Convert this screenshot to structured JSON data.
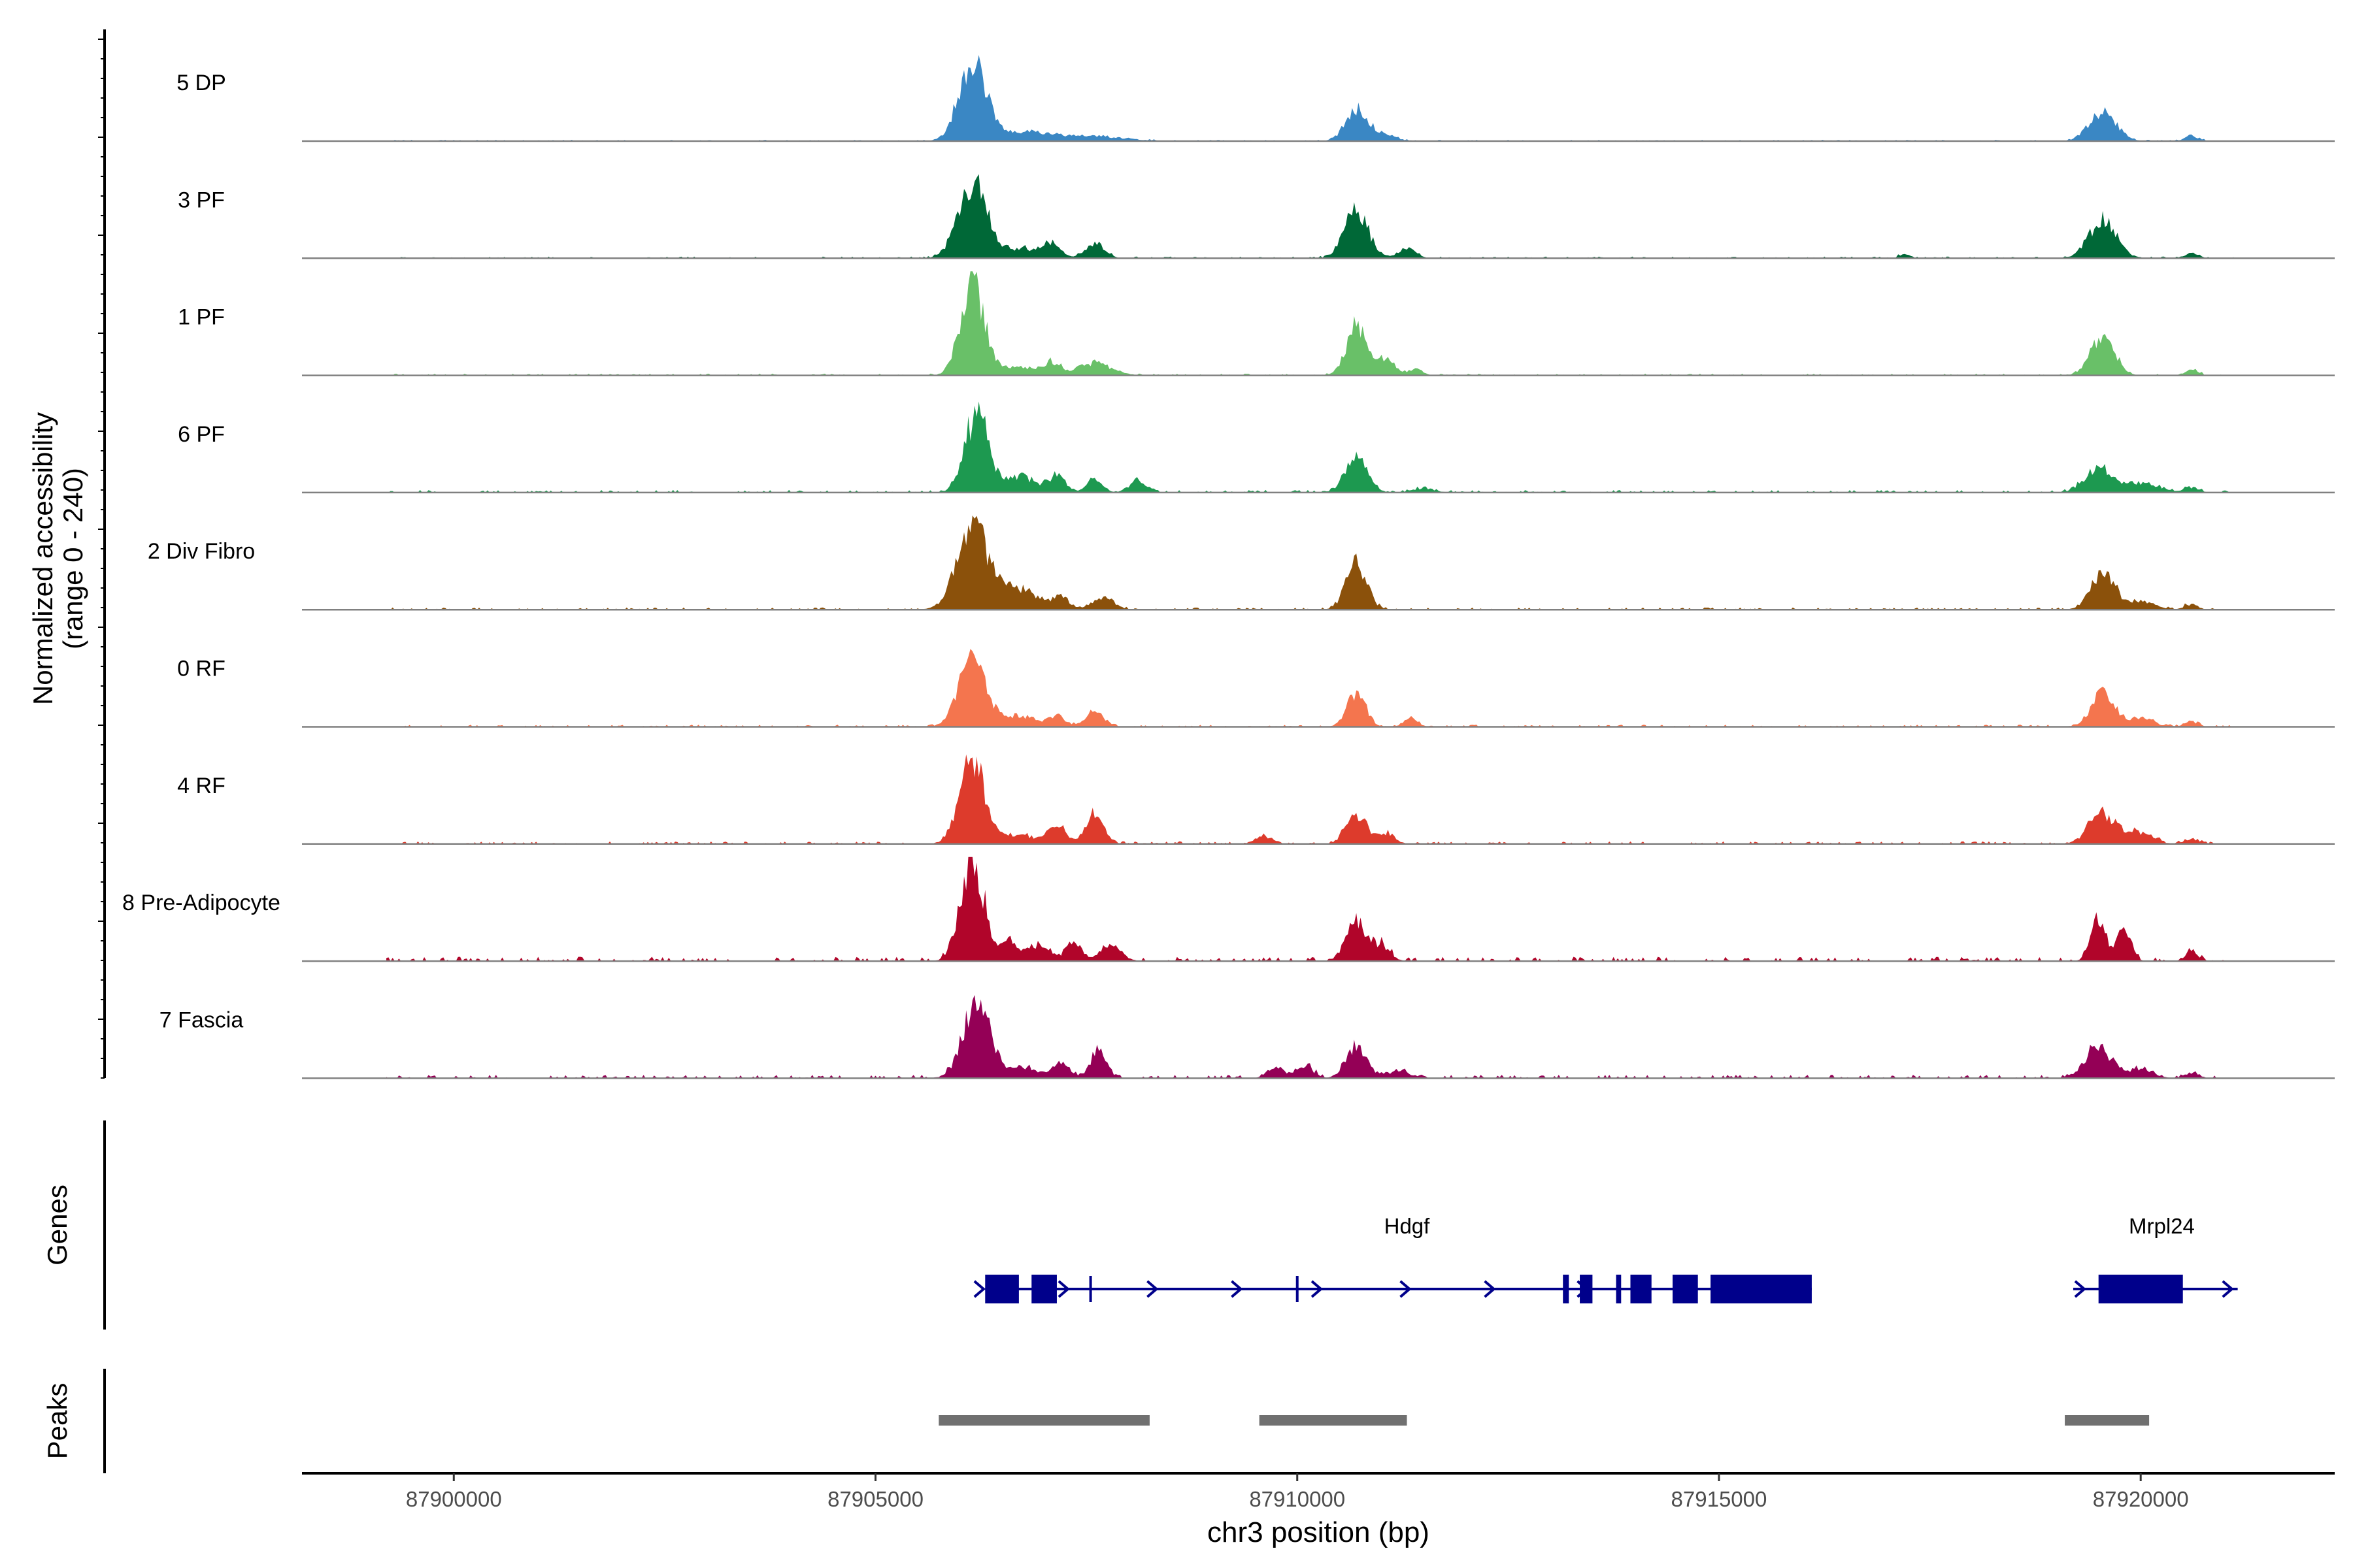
{
  "chart_data": {
    "type": "area",
    "title": "",
    "ylabel": "Normalized accessibility",
    "ylabel_range": "(range 0 - 240)",
    "xlabel": "chr3 position (bp)",
    "xlim": [
      87898200,
      87922300
    ],
    "ylim": [
      0,
      240
    ],
    "x_ticks": [
      87900000,
      87905000,
      87910000,
      87915000,
      87920000
    ],
    "x_tick_labels": [
      "87900000",
      "87905000",
      "87910000",
      "87915000",
      "87920000"
    ],
    "track_extent": [
      87899200,
      87921100
    ],
    "tracks": [
      {
        "name": "5 DP",
        "color": "#3a87c4",
        "peaks": [
          [
            87906150,
            180,
            160
          ],
          [
            87906700,
            20,
            300
          ],
          [
            87907500,
            12,
            400
          ],
          [
            87910700,
            70,
            130
          ],
          [
            87911000,
            15,
            150
          ],
          [
            87919550,
            65,
            160
          ],
          [
            87920600,
            12,
            80
          ]
        ],
        "noise": 3
      },
      {
        "name": "3 PF",
        "color": "#006837",
        "peaks": [
          [
            87906150,
            170,
            170
          ],
          [
            87906750,
            22,
            250
          ],
          [
            87907100,
            28,
            90
          ],
          [
            87907600,
            35,
            110
          ],
          [
            87910700,
            110,
            140
          ],
          [
            87911300,
            25,
            100
          ],
          [
            87917200,
            10,
            60
          ],
          [
            87919550,
            90,
            160
          ],
          [
            87920600,
            12,
            80
          ]
        ],
        "noise": 4
      },
      {
        "name": "1 PF",
        "color": "#69c068",
        "peaks": [
          [
            87906150,
            210,
            140
          ],
          [
            87906700,
            20,
            250
          ],
          [
            87907100,
            25,
            90
          ],
          [
            87907600,
            28,
            200
          ],
          [
            87910700,
            110,
            120
          ],
          [
            87911050,
            35,
            110
          ],
          [
            87911400,
            15,
            80
          ],
          [
            87919550,
            90,
            140
          ],
          [
            87920600,
            12,
            80
          ]
        ],
        "noise": 4
      },
      {
        "name": "6 PF",
        "color": "#1d9950",
        "peaks": [
          [
            87906200,
            180,
            140
          ],
          [
            87906700,
            35,
            200
          ],
          [
            87907150,
            35,
            100
          ],
          [
            87907600,
            30,
            90
          ],
          [
            87908100,
            25,
            100
          ],
          [
            87910700,
            80,
            130
          ],
          [
            87911500,
            10,
            120
          ],
          [
            87919500,
            55,
            160
          ],
          [
            87920000,
            22,
            200
          ],
          [
            87920600,
            12,
            80
          ]
        ],
        "noise": 6
      },
      {
        "name": "2 Div Fibro",
        "color": "#8b510b",
        "peaks": [
          [
            87906150,
            200,
            180
          ],
          [
            87906700,
            50,
            200
          ],
          [
            87907200,
            30,
            100
          ],
          [
            87907700,
            30,
            120
          ],
          [
            87910700,
            110,
            120
          ],
          [
            87919550,
            90,
            140
          ],
          [
            87920000,
            20,
            150
          ],
          [
            87920600,
            12,
            80
          ]
        ],
        "noise": 5
      },
      {
        "name": "0 RF",
        "color": "#f4754e",
        "peaks": [
          [
            87906150,
            155,
            160
          ],
          [
            87906700,
            25,
            200
          ],
          [
            87907150,
            25,
            100
          ],
          [
            87907600,
            35,
            110
          ],
          [
            87910700,
            75,
            110
          ],
          [
            87911350,
            20,
            80
          ],
          [
            87919550,
            75,
            140
          ],
          [
            87920000,
            20,
            150
          ],
          [
            87920600,
            12,
            80
          ]
        ],
        "noise": 5
      },
      {
        "name": "4 RF",
        "color": "#dd3b2c",
        "peaks": [
          [
            87906150,
            190,
            150
          ],
          [
            87906700,
            20,
            200
          ],
          [
            87907150,
            40,
            100
          ],
          [
            87907600,
            70,
            110
          ],
          [
            87909600,
            18,
            100
          ],
          [
            87910700,
            70,
            120
          ],
          [
            87911050,
            25,
            100
          ],
          [
            87919550,
            70,
            160
          ],
          [
            87920000,
            25,
            150
          ],
          [
            87920600,
            12,
            80
          ]
        ],
        "noise": 6
      },
      {
        "name": "8 Pre-Adipocyte",
        "color": "#b1052a",
        "peaks": [
          [
            87906150,
            230,
            140
          ],
          [
            87906600,
            45,
            120
          ],
          [
            87906950,
            40,
            100
          ],
          [
            87907350,
            45,
            100
          ],
          [
            87907800,
            35,
            120
          ],
          [
            87910700,
            90,
            120
          ],
          [
            87911000,
            35,
            100
          ],
          [
            87919500,
            95,
            90
          ],
          [
            87919800,
            80,
            80
          ],
          [
            87920600,
            25,
            70
          ]
        ],
        "noise": 10
      },
      {
        "name": "7 Fascia",
        "color": "#940056",
        "peaks": [
          [
            87906200,
            170,
            160
          ],
          [
            87906750,
            25,
            200
          ],
          [
            87907200,
            35,
            100
          ],
          [
            87907650,
            70,
            90
          ],
          [
            87909750,
            25,
            100
          ],
          [
            87910100,
            25,
            100
          ],
          [
            87910700,
            70,
            120
          ],
          [
            87911200,
            15,
            150
          ],
          [
            87919500,
            70,
            160
          ],
          [
            87920000,
            20,
            150
          ],
          [
            87920600,
            12,
            80
          ]
        ],
        "noise": 8
      }
    ],
    "genes_label": "Genes",
    "genes": [
      {
        "name": "Hdgf",
        "strand": "+",
        "start": 87906300,
        "end": 87916100,
        "exons": [
          [
            87906300,
            87906700
          ],
          [
            87906850,
            87907150
          ],
          [
            87913150,
            87913220
          ],
          [
            87913350,
            87913500
          ],
          [
            87913780,
            87913840
          ],
          [
            87913950,
            87914200
          ],
          [
            87914450,
            87914750
          ],
          [
            87914900,
            87916100
          ]
        ],
        "ticks": [
          87907550,
          87910000
        ],
        "arrows": [
          87906250,
          87907250,
          87908300,
          87909300,
          87910250,
          87911300,
          87912300,
          87913400
        ]
      },
      {
        "name": "Mrpl24",
        "strand": "+",
        "start": 87919200,
        "end": 87921150,
        "exons": [
          [
            87919500,
            87920500
          ]
        ],
        "ticks": [],
        "arrows": [
          87919300,
          87921050
        ]
      }
    ],
    "peaks_label": "Peaks",
    "peak_regions": [
      [
        87905750,
        87908250
      ],
      [
        87909550,
        87911300
      ],
      [
        87919100,
        87920100
      ]
    ]
  }
}
